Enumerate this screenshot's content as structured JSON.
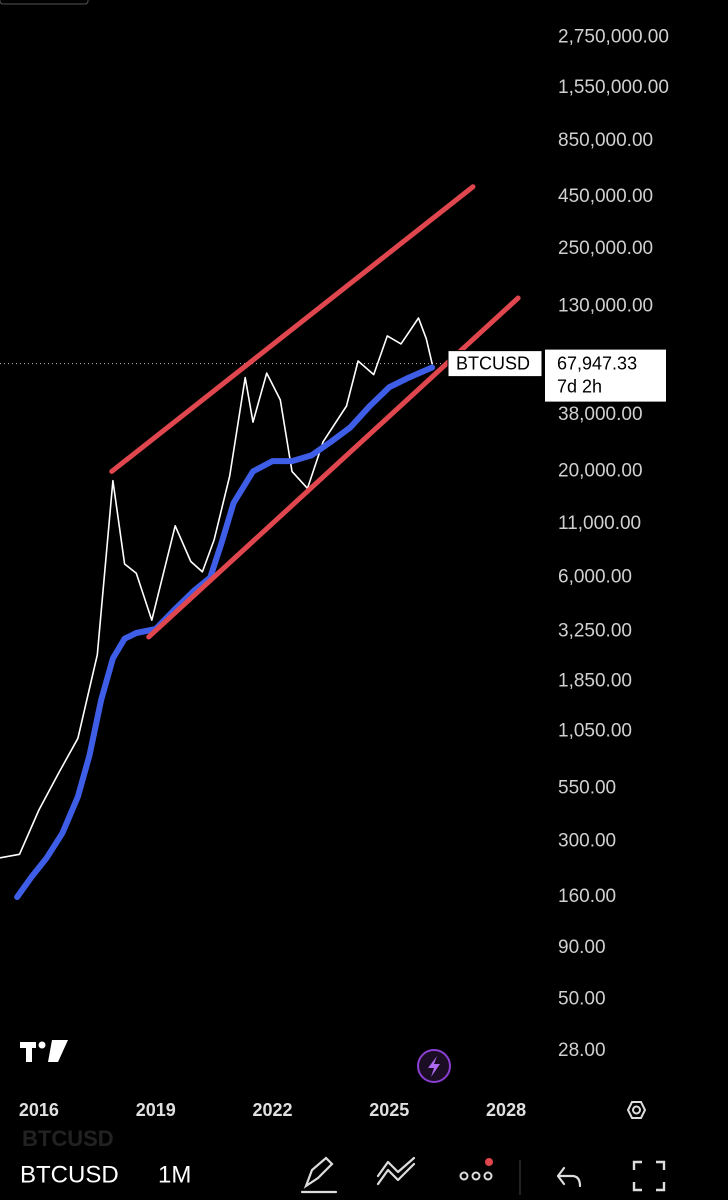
{
  "chart_data": {
    "type": "line",
    "log_scale": true,
    "xlim": [
      2015,
      2029
    ],
    "xticks": [
      2016,
      2019,
      2022,
      2025,
      2028
    ],
    "ylim": [
      19,
      4200000
    ],
    "yticks": [
      {
        "value": 2750000,
        "label": "2,750,000.00"
      },
      {
        "value": 1550000,
        "label": "1,550,000.00"
      },
      {
        "value": 850000,
        "label": "850,000.00"
      },
      {
        "value": 450000,
        "label": "450,000.00"
      },
      {
        "value": 250000,
        "label": "250,000.00"
      },
      {
        "value": 130000,
        "label": "130,000.00"
      },
      {
        "value": 38000,
        "label": "38,000.00"
      },
      {
        "value": 20000,
        "label": "20,000.00"
      },
      {
        "value": 11000,
        "label": "11,000.00"
      },
      {
        "value": 6000,
        "label": "6,000.00"
      },
      {
        "value": 3250,
        "label": "3,250.00"
      },
      {
        "value": 1850,
        "label": "1,850.00"
      },
      {
        "value": 1050,
        "label": "1,050.00"
      },
      {
        "value": 550,
        "label": "550.00"
      },
      {
        "value": 300,
        "label": "300.00"
      },
      {
        "value": 160,
        "label": "160.00"
      },
      {
        "value": 90,
        "label": "90.00"
      },
      {
        "value": 50,
        "label": "50.00"
      },
      {
        "value": 28,
        "label": "28.00"
      }
    ],
    "series": [
      {
        "name": "BTCUSD",
        "color": "#ffffff",
        "x": [
          2015.0,
          2015.5,
          2016.0,
          2016.5,
          2017.0,
          2017.5,
          2017.9,
          2018.2,
          2018.5,
          2018.9,
          2019.5,
          2019.9,
          2020.2,
          2020.5,
          2020.9,
          2021.3,
          2021.5,
          2021.85,
          2022.2,
          2022.5,
          2022.9,
          2023.3,
          2023.9,
          2024.2,
          2024.6,
          2024.95,
          2025.3,
          2025.75,
          2025.95,
          2026.1
        ],
        "values": [
          250,
          260,
          430,
          650,
          970,
          2500,
          18000,
          7000,
          6300,
          3700,
          10800,
          7200,
          6400,
          9200,
          19000,
          58000,
          35000,
          61000,
          45000,
          20000,
          16500,
          28000,
          42000,
          70000,
          60000,
          93000,
          85000,
          114000,
          90000,
          67947.33
        ]
      },
      {
        "color": "#3f5ee8",
        "x": [
          2015.44,
          2015.8,
          2016.2,
          2016.6,
          2017.0,
          2017.3,
          2017.6,
          2017.9,
          2018.2,
          2018.5,
          2019.0,
          2019.5,
          2020.0,
          2020.4,
          2020.7,
          2021.0,
          2021.5,
          2022.0,
          2022.5,
          2023.0,
          2023.5,
          2024.0,
          2024.5,
          2025.0,
          2025.5,
          2026.1
        ],
        "values": [
          160,
          200,
          250,
          330,
          500,
          800,
          1500,
          2400,
          3000,
          3200,
          3350,
          4200,
          5200,
          6000,
          9000,
          14000,
          20000,
          22500,
          22500,
          24000,
          28000,
          33000,
          42000,
          52000,
          58000,
          65000
        ]
      }
    ],
    "trendlines": [
      {
        "color": "#e0464e",
        "x": [
          2017.87,
          2027.15
        ],
        "values": [
          20000,
          505000
        ]
      },
      {
        "color": "#e0464e",
        "x": [
          2018.82,
          2028.31
        ],
        "values": [
          3060,
          143000
        ]
      }
    ],
    "last_price": {
      "value": 67947.33,
      "label": "67,947.33"
    },
    "countdown": "7d 2h"
  },
  "toolbar": {
    "symbol": "BTCUSD",
    "interval": "1M"
  }
}
